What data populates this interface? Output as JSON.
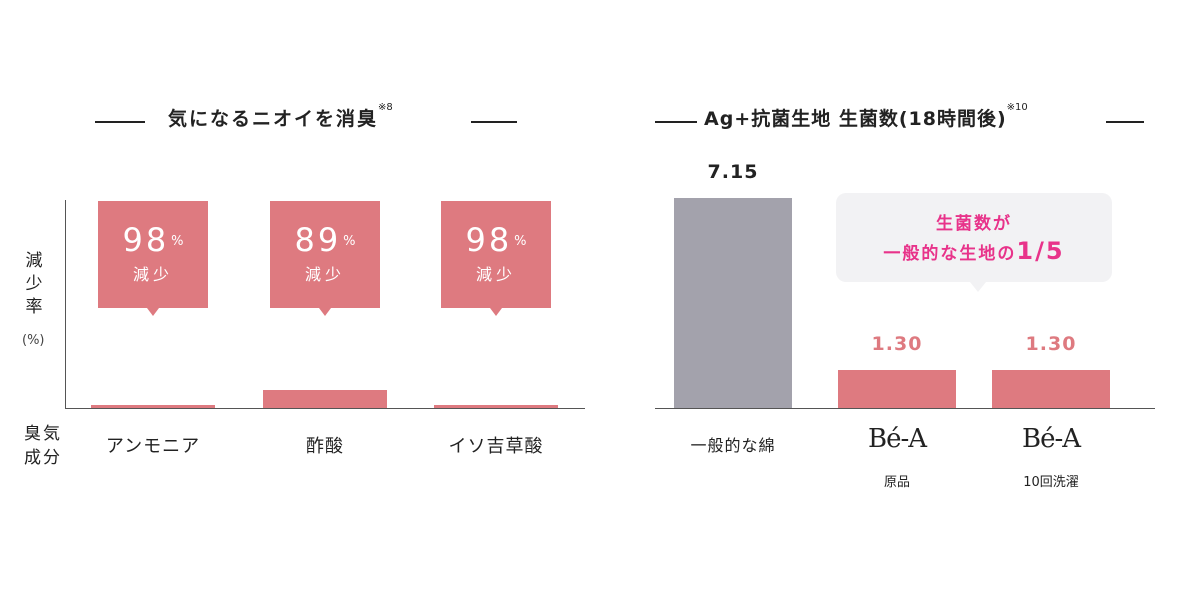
{
  "left_chart": {
    "title": "気になるニオイを消臭",
    "note": "※8",
    "ylabel": "減少率",
    "yunit": "(%)",
    "xlabel": "臭気成分",
    "value_unit": "%",
    "reduction_word": "減少"
  },
  "right_chart": {
    "title": "Ag+抗菌生地 生菌数(18時間後)",
    "note": "※10",
    "bubble_line1": "生菌数が",
    "bubble_line2_prefix": "一般的な生地の",
    "bubble_line2_emph": "1/5"
  },
  "chart_data": [
    {
      "type": "bar",
      "title": "気になるニオイを消臭",
      "ylabel": "減少率 (%)",
      "xlabel": "臭気成分",
      "categories": [
        "アンモニア",
        "酢酸",
        "イソ吉草酸"
      ],
      "values": [
        98,
        89,
        98
      ],
      "value_labels": [
        "98",
        "89",
        "98"
      ],
      "series": [
        {
          "values": [
            98,
            89,
            98
          ]
        }
      ],
      "colors": {
        "bar": "#de7a80",
        "callout": "#de7a80"
      }
    },
    {
      "type": "bar",
      "title": "Ag+抗菌生地 生菌数(18時間後)",
      "categories": [
        "一般的な綿",
        "Bé-A 原品",
        "Bé-A 10回洗濯"
      ],
      "category_labels": [
        {
          "main": "一般的な綿",
          "sub": ""
        },
        {
          "main": "Bé-A",
          "sub": "原品"
        },
        {
          "main": "Bé-A",
          "sub": "10回洗濯"
        }
      ],
      "values": [
        7.15,
        1.3,
        1.3
      ],
      "value_labels": [
        "7.15",
        "1.30",
        "1.30"
      ],
      "colors": [
        "#a3a2ac",
        "#de7a80",
        "#de7a80"
      ],
      "value_label_colors": [
        "#222222",
        "#de7a80",
        "#de7a80"
      ],
      "annotation": "生菌数が 一般的な生地の1/5",
      "annotation_color": "#e8338a"
    }
  ]
}
